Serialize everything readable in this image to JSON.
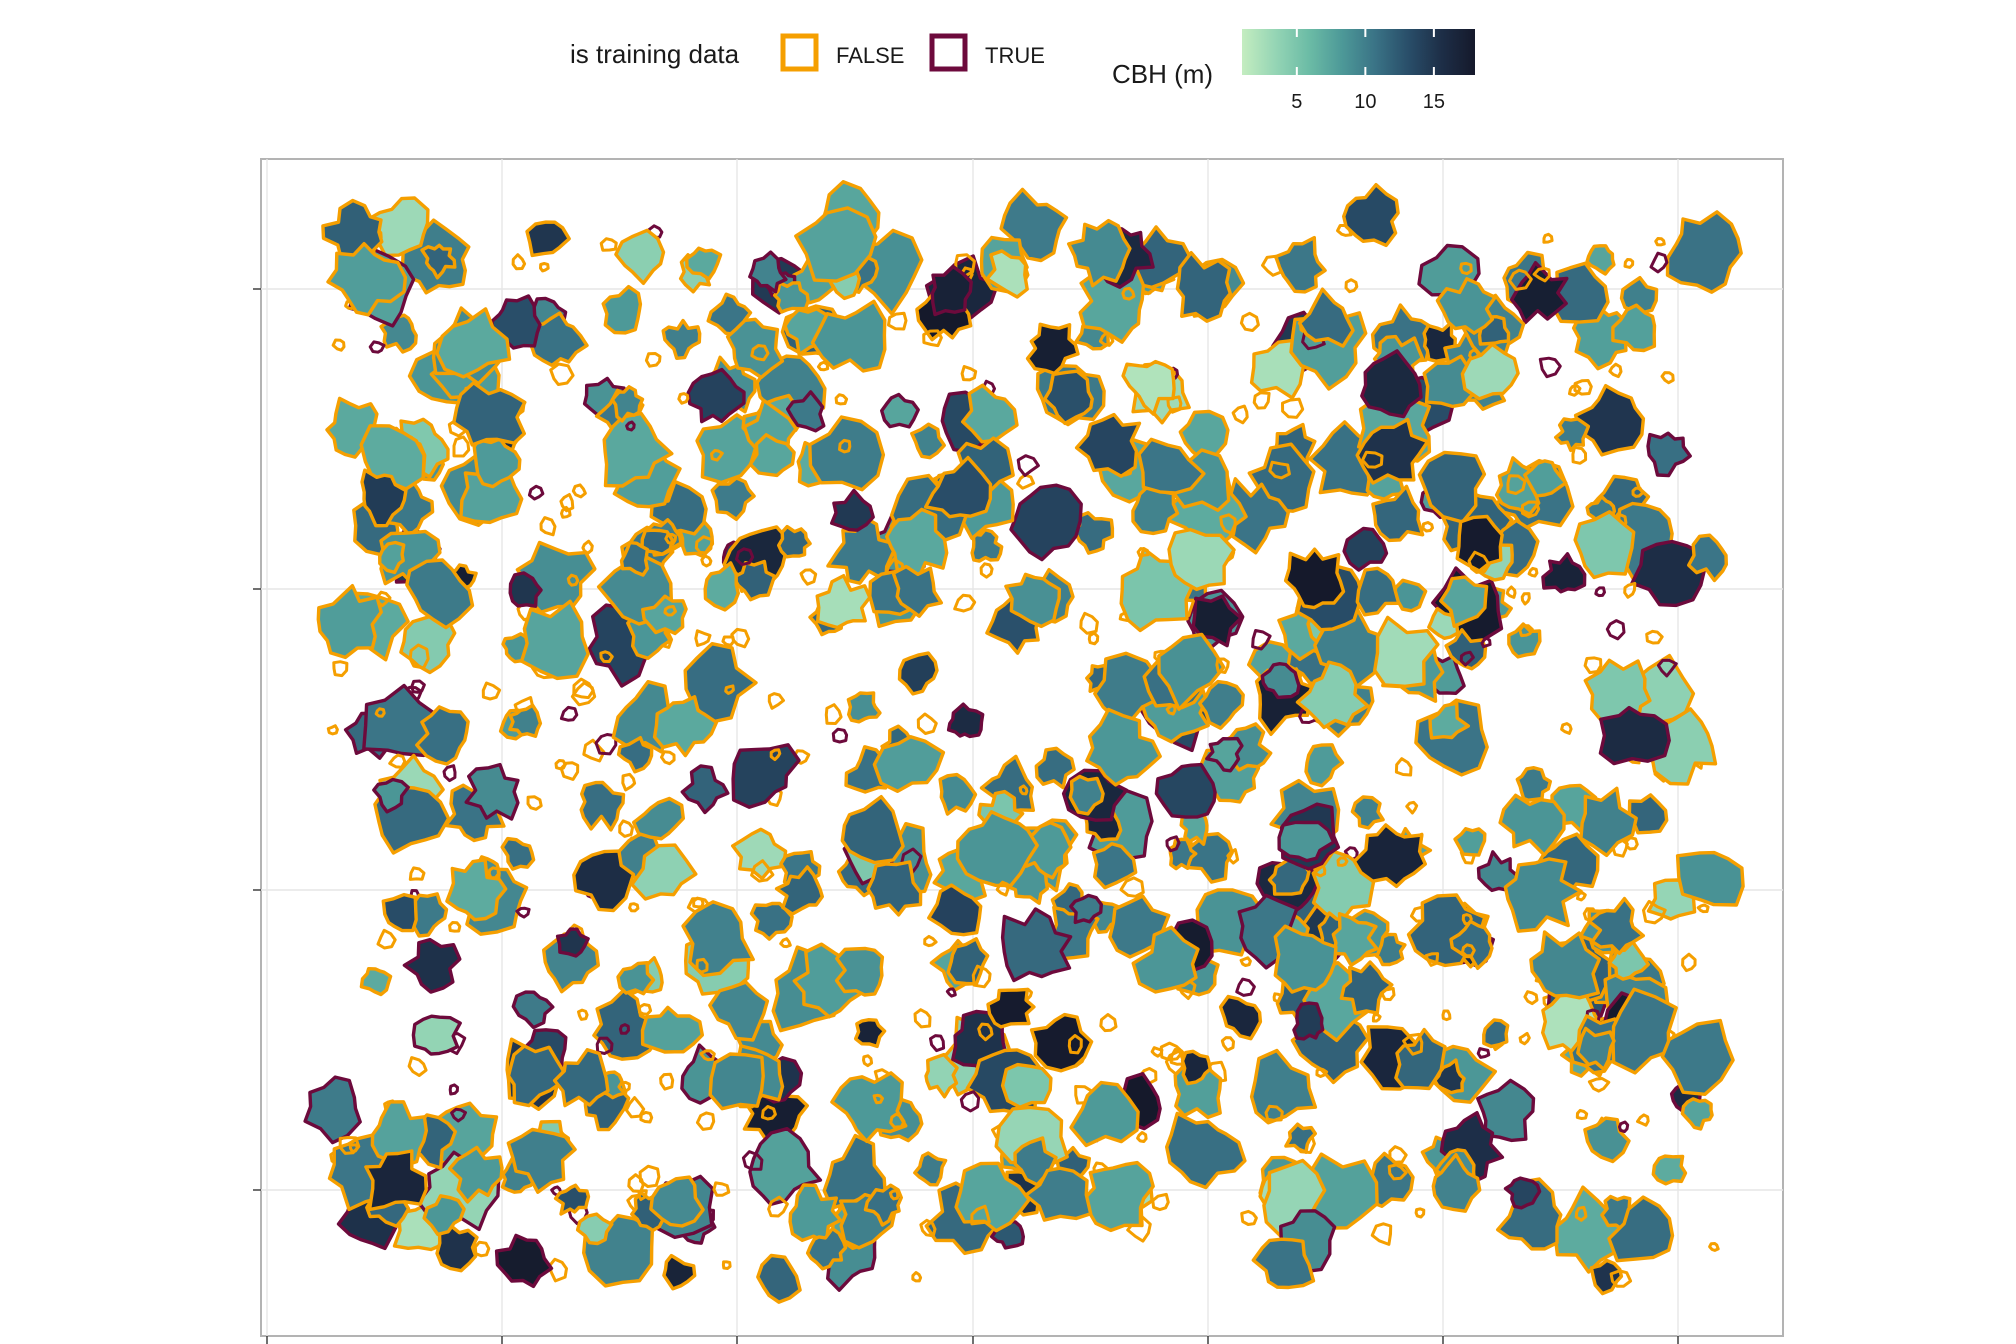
{
  "legend": {
    "training": {
      "title": "is training data",
      "items": [
        {
          "label": "FALSE",
          "color": "#f59f00"
        },
        {
          "label": "TRUE",
          "color": "#6d0a3c"
        }
      ]
    },
    "cbh": {
      "title": "CBH (m)",
      "ticks": [
        5,
        10,
        15
      ],
      "range": [
        1,
        18
      ],
      "colors": [
        "#c4edc0",
        "#95d5b5",
        "#6cbca6",
        "#4d9998",
        "#3a7386",
        "#294e69",
        "#1d2e47",
        "#15192b"
      ]
    }
  },
  "map": {
    "crown_count_approx": 900,
    "gridlines": true,
    "axis_tick_labels_shown": false
  }
}
